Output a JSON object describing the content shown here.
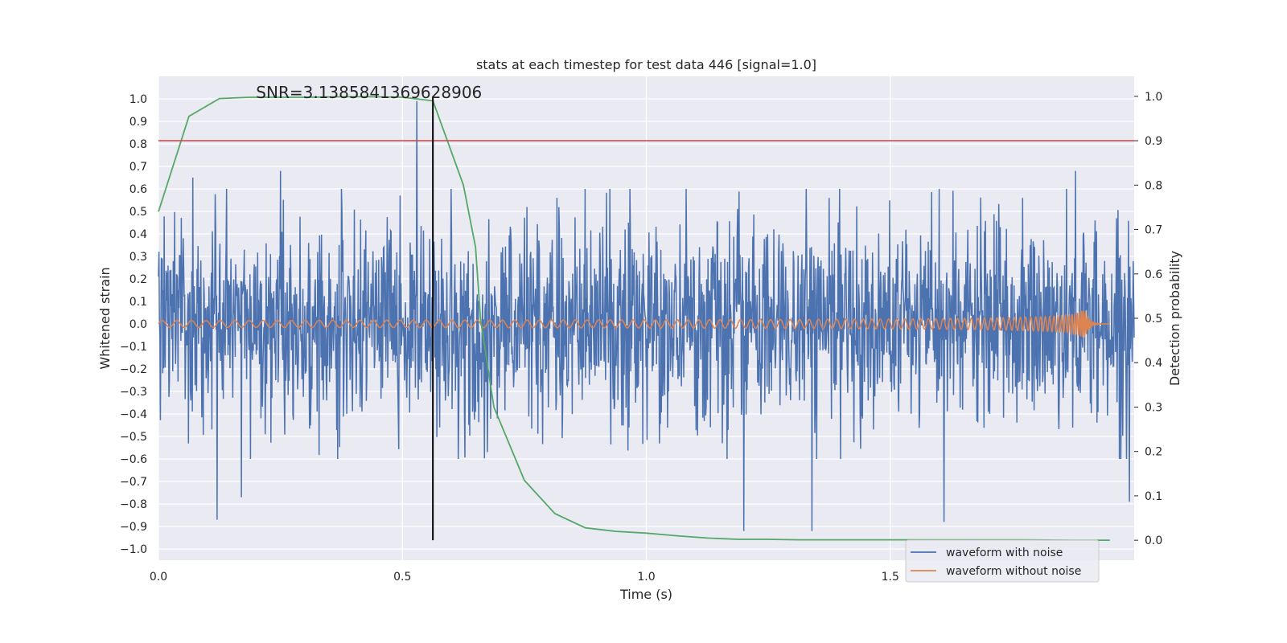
{
  "chart_data": {
    "type": "line",
    "title": "stats at each timestep for test data 446 [signal=1.0]",
    "xlabel": "Time (s)",
    "ylabel": "Whitened strain",
    "ylabel_right": "Detection probability",
    "xlim": [
      0.0,
      2.0
    ],
    "ylim": [
      -1.05,
      1.1
    ],
    "ylim_right": [
      -0.045,
      1.045
    ],
    "x_ticks": [
      "0.0",
      "0.5",
      "1.0",
      "1.5"
    ],
    "x_tick_values": [
      0.0,
      0.5,
      1.0,
      1.5
    ],
    "y_ticks": [
      "1.0",
      "0.9",
      "0.8",
      "0.7",
      "0.6",
      "0.5",
      "0.4",
      "0.3",
      "0.2",
      "0.1",
      "0.0",
      "−0.1",
      "−0.2",
      "−0.3",
      "−0.4",
      "−0.5",
      "−0.6",
      "−0.7",
      "−0.8",
      "−0.9",
      "−1.0"
    ],
    "y_tick_values": [
      1.0,
      0.9,
      0.8,
      0.7,
      0.6,
      0.5,
      0.4,
      0.3,
      0.2,
      0.1,
      0.0,
      -0.1,
      -0.2,
      -0.3,
      -0.4,
      -0.5,
      -0.6,
      -0.7,
      -0.8,
      -0.9,
      -1.0
    ],
    "y_ticks_right": [
      "1.0",
      "0.9",
      "0.8",
      "0.7",
      "0.6",
      "0.5",
      "0.4",
      "0.3",
      "0.2",
      "0.1",
      "0.0"
    ],
    "y_tick_values_right": [
      1.0,
      0.9,
      0.8,
      0.7,
      0.6,
      0.5,
      0.4,
      0.3,
      0.2,
      0.1,
      0.0
    ],
    "annotation": "SNR=3.1385841369628906",
    "annotation_pos": {
      "x": 0.2,
      "y": 1.0
    },
    "grid": true,
    "legend_placement": "lower-right",
    "series": [
      {
        "name": "waveform with noise",
        "color": "#4c72b0",
        "axis": "left",
        "kind": "noise",
        "x_range": [
          0.0,
          2.0
        ],
        "n_points": 2048,
        "amplitude_std": 0.22,
        "spikes": [
          {
            "x": 0.53,
            "y": 0.99
          },
          {
            "x": 0.07,
            "y": 0.65
          },
          {
            "x": 0.25,
            "y": 0.68
          },
          {
            "x": 0.12,
            "y": -0.87
          },
          {
            "x": 0.17,
            "y": -0.77
          },
          {
            "x": 1.2,
            "y": -0.92
          },
          {
            "x": 1.34,
            "y": -0.92
          },
          {
            "x": 1.61,
            "y": -0.88
          },
          {
            "x": 1.99,
            "y": -0.79
          },
          {
            "x": 1.88,
            "y": 0.68
          }
        ]
      },
      {
        "name": "waveform without noise",
        "color": "#dd8452",
        "axis": "left",
        "kind": "chirp",
        "x_range": [
          0.0,
          1.95
        ],
        "merger_time": 1.9,
        "start_frequency": 33,
        "start_amplitude": 0.015,
        "peak_amplitude": 0.06
      },
      {
        "name": "",
        "color": "#55a868",
        "axis": "right",
        "kind": "line",
        "x": [
          0.0,
          0.0625,
          0.125,
          0.1875,
          0.25,
          0.3125,
          0.375,
          0.4375,
          0.5,
          0.5625,
          0.625,
          0.65,
          0.66,
          0.6875,
          0.75,
          0.8125,
          0.875,
          0.9375,
          1.0,
          1.0625,
          1.125,
          1.1875,
          1.25,
          1.3125,
          1.375,
          1.5,
          1.625,
          1.75,
          1.875,
          1.95
        ],
        "y": [
          0.74,
          0.955,
          0.995,
          0.998,
          0.998,
          0.998,
          0.999,
          0.999,
          0.998,
          0.99,
          0.8,
          0.66,
          0.5,
          0.3,
          0.135,
          0.06,
          0.028,
          0.02,
          0.016,
          0.01,
          0.005,
          0.002,
          0.002,
          0.001,
          0.001,
          0.001,
          0.001,
          0.001,
          0.0,
          0.0
        ]
      }
    ],
    "hlines": [
      {
        "axis": "right",
        "y": 0.9,
        "color": "#c44e52"
      }
    ],
    "vlines": [
      {
        "x": 0.5625,
        "y_from": 0.0,
        "y_to": 1.0,
        "axis": "right",
        "color": "#000000"
      }
    ]
  }
}
